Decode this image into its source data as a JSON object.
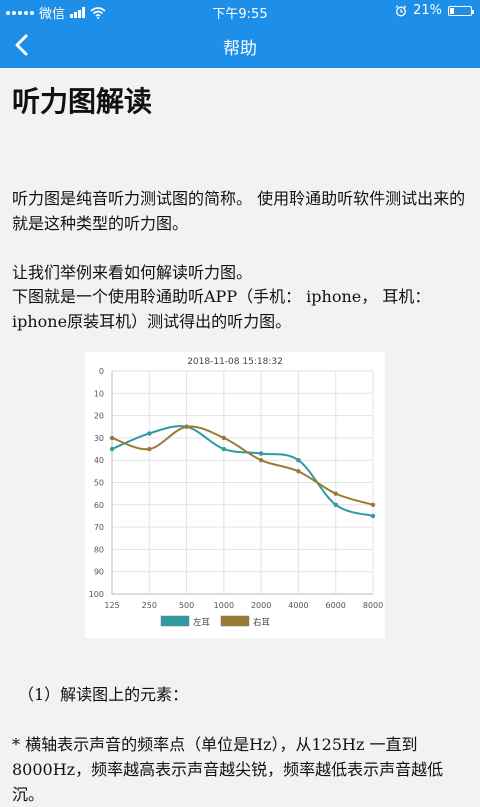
{
  "status_bar": {
    "carrier": "微信",
    "time": "下午9:55",
    "battery": "21%",
    "battery_level": 0.21,
    "icons": [
      "signal-dots-icon",
      "signal-bars-icon",
      "wifi-icon",
      "alarm-icon",
      "battery-icon"
    ]
  },
  "nav": {
    "back_icon": "chevron-left-icon",
    "title": "帮助",
    "color": "#1e8fe8"
  },
  "article": {
    "title": "听力图解读",
    "para1": "听力图是纯音听力测试图的简称。 使用聆通助听软件测试出来的就是这种类型的听力图。",
    "para2_line1": "让我们举例来看如何解读听力图。",
    "para2_line2": "下图就是一个使用聆通助听APP（手机： iphone， 耳机：iphone原装耳机）测试得出的听力图。",
    "section_heading": "（1）解读图上的元素：",
    "bullet1": "* 横轴表示声音的频率点（单位是Hz），从125Hz 一直到 8000Hz，频率越高表示声音越尖锐，频率越低表示声音越低沉。"
  },
  "chart_data": {
    "type": "line",
    "title": "2018-11-08 15:18:32",
    "categories": [
      "125",
      "250",
      "500",
      "1000",
      "2000",
      "4000",
      "6000",
      "8000"
    ],
    "ylim": [
      0,
      100
    ],
    "y_inverted": true,
    "y_ticks": [
      "0",
      "10",
      "20",
      "30",
      "40",
      "50",
      "60",
      "70",
      "80",
      "90",
      "100"
    ],
    "grid": true,
    "legend_position": "bottom",
    "series": [
      {
        "name": "左耳",
        "values": [
          35,
          28,
          25,
          35,
          37,
          40,
          60,
          65
        ],
        "color": "#2e9aa3"
      },
      {
        "name": "右耳",
        "values": [
          30,
          35,
          25,
          30,
          40,
          45,
          55,
          60
        ],
        "color": "#9a7a32"
      }
    ]
  }
}
